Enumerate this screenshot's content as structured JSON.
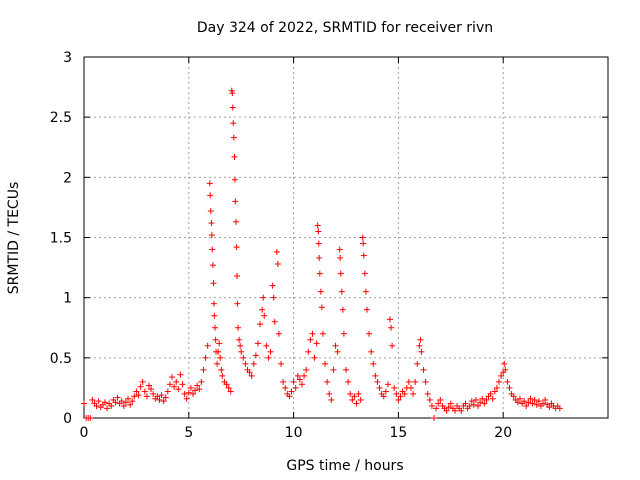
{
  "chart_data": {
    "type": "scatter",
    "title": "Day 324 of 2022, SRMTID for receiver rivn",
    "xlabel": "GPS time / hours",
    "ylabel": "SRMTID / TECUs",
    "xlim": [
      0,
      25
    ],
    "ylim": [
      0,
      3
    ],
    "xticks": [
      "0",
      "5",
      "10",
      "15",
      "20"
    ],
    "xtick_values": [
      0,
      5,
      10,
      15,
      20
    ],
    "yticks": [
      "0",
      "0.5",
      "1",
      "1.5",
      "2",
      "2.5",
      "3"
    ],
    "ytick_values": [
      0,
      0.5,
      1,
      1.5,
      2,
      2.5,
      3
    ],
    "grid": true,
    "marker": "+",
    "marker_color": "#ff0000",
    "series": [
      {
        "name": "SRMTID",
        "points": [
          [
            0.0,
            0.12
          ],
          [
            0.1,
            0.0
          ],
          [
            0.2,
            0.0
          ],
          [
            0.3,
            0.0
          ],
          [
            0.4,
            0.15
          ],
          [
            0.5,
            0.12
          ],
          [
            0.6,
            0.1
          ],
          [
            0.7,
            0.14
          ],
          [
            0.8,
            0.09
          ],
          [
            0.9,
            0.11
          ],
          [
            1.0,
            0.13
          ],
          [
            1.1,
            0.08
          ],
          [
            1.2,
            0.12
          ],
          [
            1.3,
            0.1
          ],
          [
            1.4,
            0.15
          ],
          [
            1.5,
            0.13
          ],
          [
            1.6,
            0.17
          ],
          [
            1.7,
            0.12
          ],
          [
            1.8,
            0.14
          ],
          [
            1.9,
            0.1
          ],
          [
            2.0,
            0.13
          ],
          [
            2.1,
            0.16
          ],
          [
            2.2,
            0.11
          ],
          [
            2.3,
            0.14
          ],
          [
            2.4,
            0.18
          ],
          [
            2.5,
            0.22
          ],
          [
            2.6,
            0.19
          ],
          [
            2.7,
            0.26
          ],
          [
            2.8,
            0.3
          ],
          [
            2.9,
            0.22
          ],
          [
            3.0,
            0.18
          ],
          [
            3.1,
            0.27
          ],
          [
            3.2,
            0.24
          ],
          [
            3.3,
            0.2
          ],
          [
            3.4,
            0.16
          ],
          [
            3.5,
            0.18
          ],
          [
            3.6,
            0.15
          ],
          [
            3.7,
            0.19
          ],
          [
            3.8,
            0.14
          ],
          [
            3.9,
            0.17
          ],
          [
            4.0,
            0.22
          ],
          [
            4.1,
            0.28
          ],
          [
            4.2,
            0.34
          ],
          [
            4.3,
            0.26
          ],
          [
            4.4,
            0.3
          ],
          [
            4.5,
            0.24
          ],
          [
            4.6,
            0.36
          ],
          [
            4.7,
            0.28
          ],
          [
            4.8,
            0.2
          ],
          [
            4.9,
            0.16
          ],
          [
            5.0,
            0.21
          ],
          [
            5.1,
            0.25
          ],
          [
            5.2,
            0.2
          ],
          [
            5.3,
            0.23
          ],
          [
            5.4,
            0.27
          ],
          [
            5.5,
            0.24
          ],
          [
            5.6,
            0.3
          ],
          [
            5.7,
            0.4
          ],
          [
            5.8,
            0.5
          ],
          [
            5.9,
            0.6
          ],
          [
            6.0,
            1.95
          ],
          [
            6.02,
            1.85
          ],
          [
            6.05,
            1.72
          ],
          [
            6.08,
            1.62
          ],
          [
            6.1,
            1.52
          ],
          [
            6.12,
            1.4
          ],
          [
            6.15,
            1.27
          ],
          [
            6.18,
            1.12
          ],
          [
            6.2,
            0.95
          ],
          [
            6.22,
            0.85
          ],
          [
            6.25,
            0.75
          ],
          [
            6.28,
            0.65
          ],
          [
            6.3,
            0.55
          ],
          [
            6.35,
            0.45
          ],
          [
            6.4,
            0.55
          ],
          [
            6.45,
            0.62
          ],
          [
            6.5,
            0.5
          ],
          [
            6.55,
            0.4
          ],
          [
            6.6,
            0.35
          ],
          [
            6.7,
            0.3
          ],
          [
            6.8,
            0.28
          ],
          [
            6.9,
            0.25
          ],
          [
            7.0,
            0.22
          ],
          [
            7.05,
            2.72
          ],
          [
            7.08,
            2.7
          ],
          [
            7.1,
            2.58
          ],
          [
            7.12,
            2.45
          ],
          [
            7.15,
            2.33
          ],
          [
            7.18,
            2.17
          ],
          [
            7.2,
            1.98
          ],
          [
            7.22,
            1.8
          ],
          [
            7.25,
            1.63
          ],
          [
            7.28,
            1.42
          ],
          [
            7.3,
            1.18
          ],
          [
            7.32,
            0.95
          ],
          [
            7.35,
            0.75
          ],
          [
            7.4,
            0.65
          ],
          [
            7.45,
            0.6
          ],
          [
            7.5,
            0.55
          ],
          [
            7.6,
            0.5
          ],
          [
            7.7,
            0.45
          ],
          [
            7.8,
            0.4
          ],
          [
            7.9,
            0.38
          ],
          [
            8.0,
            0.35
          ],
          [
            8.1,
            0.45
          ],
          [
            8.2,
            0.52
          ],
          [
            8.3,
            0.62
          ],
          [
            8.4,
            0.78
          ],
          [
            8.5,
            0.9
          ],
          [
            8.55,
            1.0
          ],
          [
            8.6,
            0.85
          ],
          [
            8.7,
            0.6
          ],
          [
            8.8,
            0.5
          ],
          [
            8.9,
            0.55
          ],
          [
            9.0,
            1.1
          ],
          [
            9.05,
            1.0
          ],
          [
            9.1,
            0.8
          ],
          [
            9.2,
            1.38
          ],
          [
            9.25,
            1.28
          ],
          [
            9.3,
            0.7
          ],
          [
            9.4,
            0.45
          ],
          [
            9.5,
            0.3
          ],
          [
            9.6,
            0.25
          ],
          [
            9.7,
            0.2
          ],
          [
            9.8,
            0.18
          ],
          [
            9.9,
            0.22
          ],
          [
            10.0,
            0.3
          ],
          [
            10.1,
            0.25
          ],
          [
            10.2,
            0.35
          ],
          [
            10.3,
            0.32
          ],
          [
            10.4,
            0.28
          ],
          [
            10.5,
            0.35
          ],
          [
            10.6,
            0.4
          ],
          [
            10.7,
            0.55
          ],
          [
            10.8,
            0.65
          ],
          [
            10.9,
            0.7
          ],
          [
            11.0,
            0.5
          ],
          [
            11.1,
            0.62
          ],
          [
            11.15,
            1.6
          ],
          [
            11.18,
            1.55
          ],
          [
            11.2,
            1.45
          ],
          [
            11.22,
            1.33
          ],
          [
            11.25,
            1.2
          ],
          [
            11.3,
            1.05
          ],
          [
            11.35,
            0.92
          ],
          [
            11.4,
            0.7
          ],
          [
            11.5,
            0.45
          ],
          [
            11.6,
            0.3
          ],
          [
            11.7,
            0.2
          ],
          [
            11.8,
            0.15
          ],
          [
            11.9,
            0.4
          ],
          [
            12.0,
            0.6
          ],
          [
            12.1,
            0.55
          ],
          [
            12.2,
            1.4
          ],
          [
            12.22,
            1.33
          ],
          [
            12.25,
            1.2
          ],
          [
            12.3,
            1.05
          ],
          [
            12.35,
            0.9
          ],
          [
            12.4,
            0.7
          ],
          [
            12.5,
            0.4
          ],
          [
            12.6,
            0.3
          ],
          [
            12.7,
            0.2
          ],
          [
            12.8,
            0.15
          ],
          [
            12.9,
            0.18
          ],
          [
            13.0,
            0.12
          ],
          [
            13.1,
            0.2
          ],
          [
            13.2,
            0.15
          ],
          [
            13.3,
            1.5
          ],
          [
            13.32,
            1.45
          ],
          [
            13.35,
            1.35
          ],
          [
            13.4,
            1.2
          ],
          [
            13.45,
            1.05
          ],
          [
            13.5,
            0.9
          ],
          [
            13.6,
            0.7
          ],
          [
            13.7,
            0.55
          ],
          [
            13.8,
            0.45
          ],
          [
            13.9,
            0.35
          ],
          [
            14.0,
            0.3
          ],
          [
            14.1,
            0.25
          ],
          [
            14.2,
            0.2
          ],
          [
            14.3,
            0.18
          ],
          [
            14.4,
            0.22
          ],
          [
            14.5,
            0.28
          ],
          [
            14.6,
            0.82
          ],
          [
            14.65,
            0.75
          ],
          [
            14.7,
            0.6
          ],
          [
            14.8,
            0.25
          ],
          [
            14.9,
            0.2
          ],
          [
            15.0,
            0.15
          ],
          [
            15.1,
            0.18
          ],
          [
            15.2,
            0.22
          ],
          [
            15.3,
            0.2
          ],
          [
            15.4,
            0.25
          ],
          [
            15.5,
            0.3
          ],
          [
            15.6,
            0.25
          ],
          [
            15.7,
            0.2
          ],
          [
            15.8,
            0.3
          ],
          [
            15.9,
            0.45
          ],
          [
            16.0,
            0.6
          ],
          [
            16.05,
            0.65
          ],
          [
            16.1,
            0.55
          ],
          [
            16.2,
            0.4
          ],
          [
            16.3,
            0.3
          ],
          [
            16.4,
            0.2
          ],
          [
            16.5,
            0.15
          ],
          [
            16.6,
            0.1
          ],
          [
            16.7,
            0.0
          ],
          [
            16.8,
            0.08
          ],
          [
            16.9,
            0.12
          ],
          [
            17.0,
            0.15
          ],
          [
            17.1,
            0.1
          ],
          [
            17.2,
            0.08
          ],
          [
            17.3,
            0.06
          ],
          [
            17.4,
            0.09
          ],
          [
            17.5,
            0.12
          ],
          [
            17.6,
            0.08
          ],
          [
            17.7,
            0.06
          ],
          [
            17.8,
            0.1
          ],
          [
            17.9,
            0.08
          ],
          [
            18.0,
            0.06
          ],
          [
            18.1,
            0.1
          ],
          [
            18.2,
            0.12
          ],
          [
            18.3,
            0.08
          ],
          [
            18.4,
            0.1
          ],
          [
            18.5,
            0.14
          ],
          [
            18.6,
            0.11
          ],
          [
            18.7,
            0.15
          ],
          [
            18.8,
            0.1
          ],
          [
            18.9,
            0.13
          ],
          [
            19.0,
            0.16
          ],
          [
            19.1,
            0.12
          ],
          [
            19.2,
            0.15
          ],
          [
            19.3,
            0.18
          ],
          [
            19.4,
            0.2
          ],
          [
            19.5,
            0.16
          ],
          [
            19.6,
            0.22
          ],
          [
            19.7,
            0.25
          ],
          [
            19.8,
            0.3
          ],
          [
            19.9,
            0.35
          ],
          [
            20.0,
            0.38
          ],
          [
            20.05,
            0.45
          ],
          [
            20.1,
            0.4
          ],
          [
            20.2,
            0.3
          ],
          [
            20.3,
            0.25
          ],
          [
            20.4,
            0.2
          ],
          [
            20.5,
            0.18
          ],
          [
            20.6,
            0.15
          ],
          [
            20.7,
            0.13
          ],
          [
            20.8,
            0.16
          ],
          [
            20.9,
            0.12
          ],
          [
            21.0,
            0.14
          ],
          [
            21.1,
            0.1
          ],
          [
            21.2,
            0.13
          ],
          [
            21.3,
            0.16
          ],
          [
            21.4,
            0.12
          ],
          [
            21.5,
            0.15
          ],
          [
            21.6,
            0.11
          ],
          [
            21.7,
            0.14
          ],
          [
            21.8,
            0.1
          ],
          [
            21.9,
            0.12
          ],
          [
            22.0,
            0.15
          ],
          [
            22.1,
            0.11
          ],
          [
            22.2,
            0.09
          ],
          [
            22.3,
            0.12
          ],
          [
            22.4,
            0.1
          ],
          [
            22.5,
            0.08
          ],
          [
            22.6,
            0.1
          ],
          [
            22.7,
            0.08
          ]
        ]
      }
    ]
  }
}
